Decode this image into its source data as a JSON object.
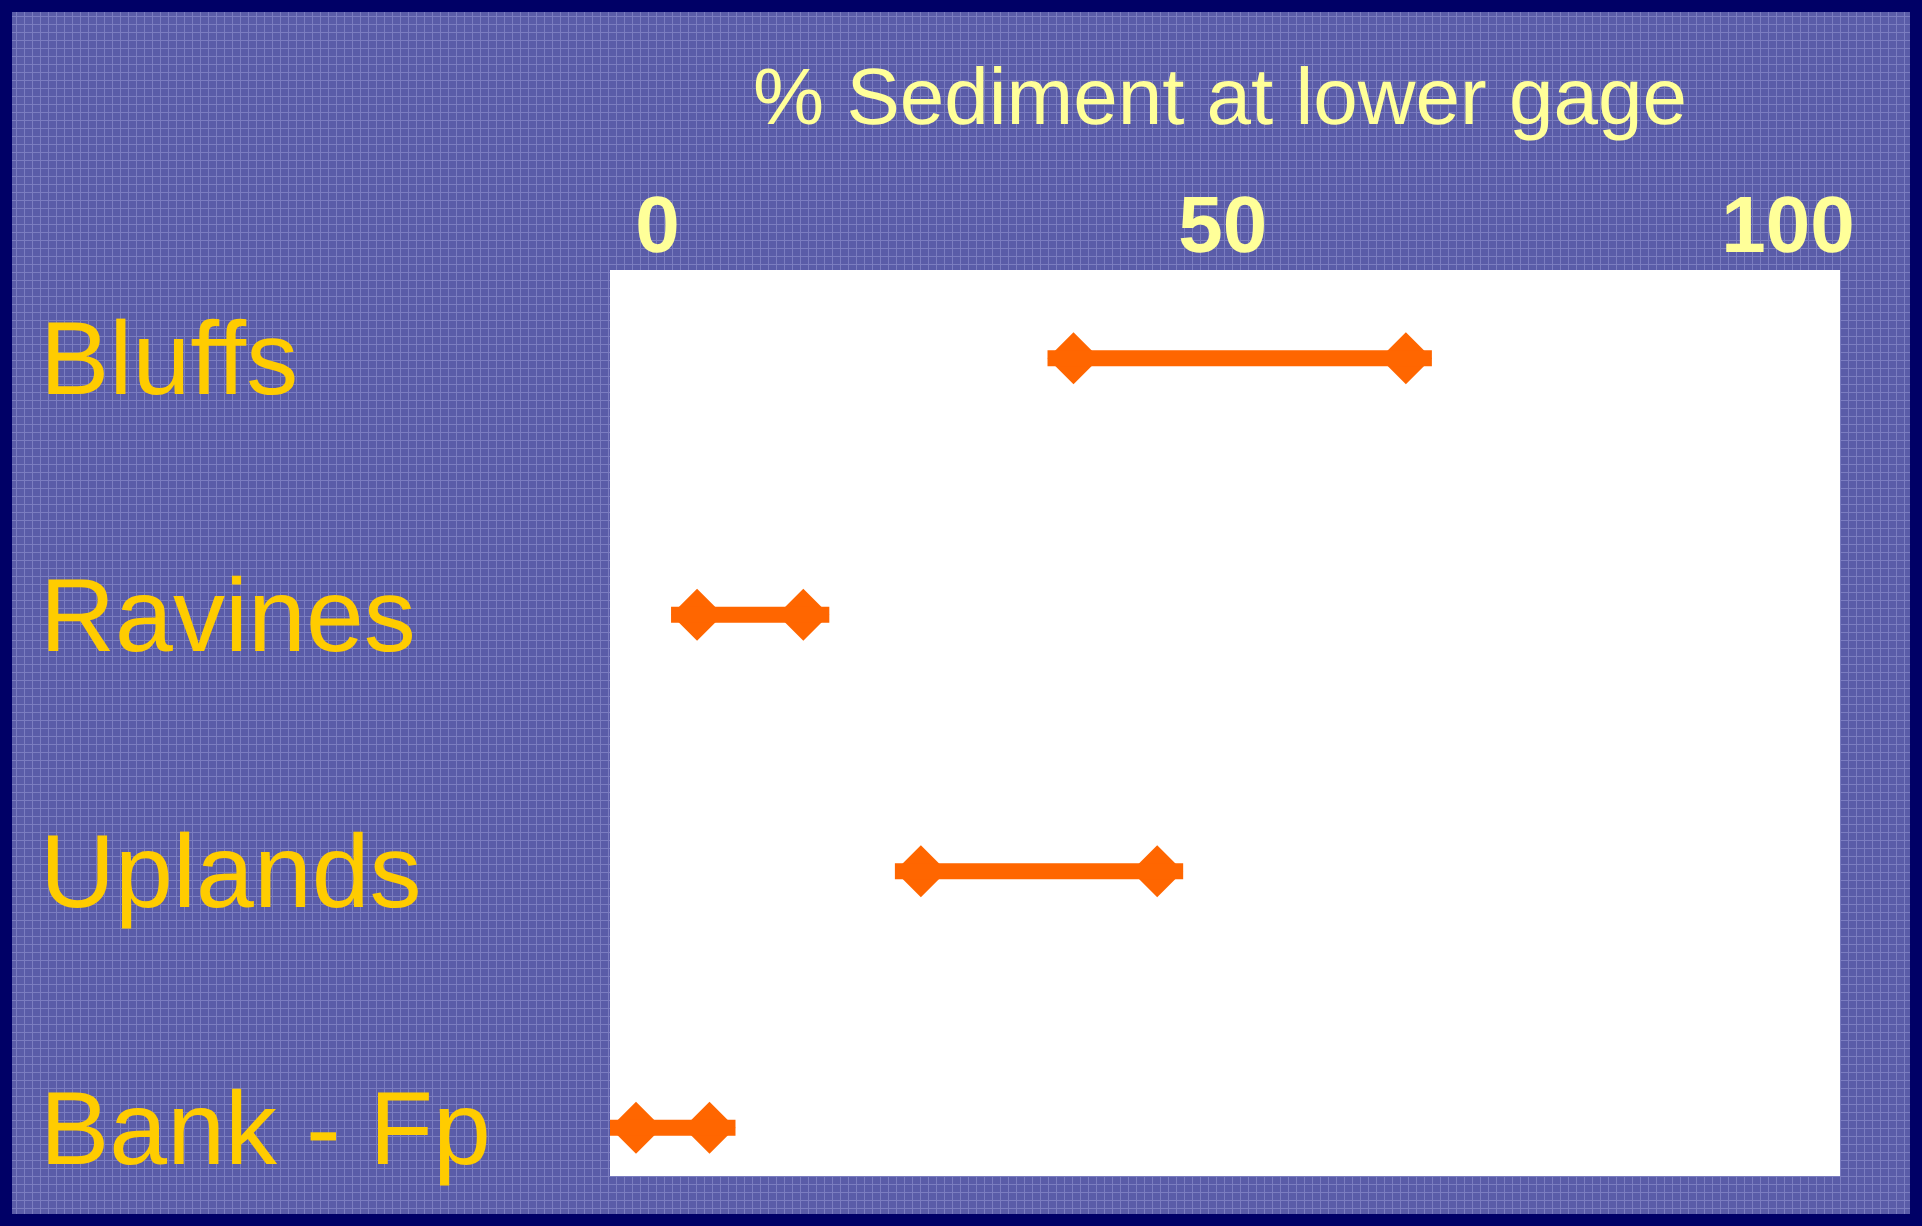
{
  "chart_data": {
    "type": "bar",
    "orientation": "horizontal",
    "title": "% Sediment at lower gage",
    "categories": [
      "Bluffs",
      "Ravines",
      "Uplands",
      "Bank - Fp"
    ],
    "base": [
      34.5,
      1.2,
      21,
      -4.2
    ],
    "values": [
      34,
      14,
      25.5,
      11.1
    ],
    "color": "#ff6600",
    "marker": "diamond",
    "xlim": [
      -4.2,
      104.6
    ],
    "xticks": [
      0,
      50,
      100
    ],
    "grid": false
  }
}
